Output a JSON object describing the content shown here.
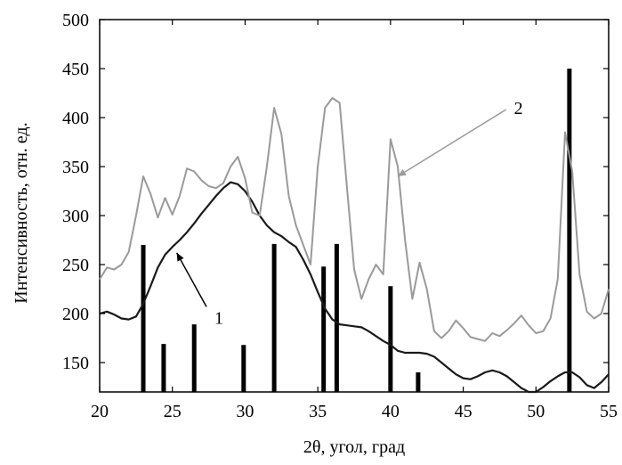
{
  "chart_data": {
    "type": "line",
    "xlabel": "2θ, угол, град",
    "ylabel": "Интенсивность, отн. ед.",
    "xlim": [
      20,
      55
    ],
    "ylim": [
      120,
      500
    ],
    "xticks": [
      20,
      25,
      30,
      35,
      40,
      45,
      50,
      55
    ],
    "yticks": [
      150,
      200,
      250,
      300,
      350,
      400,
      450,
      500
    ],
    "grid": false,
    "series": [
      {
        "name": "1",
        "color": "#1a1a1a",
        "x": [
          20,
          20.5,
          21,
          21.5,
          22,
          22.5,
          23,
          23.5,
          24,
          24.5,
          25,
          25.5,
          26,
          26.5,
          27,
          27.5,
          28,
          28.5,
          29,
          29.5,
          30,
          30.5,
          31,
          31.5,
          32,
          32.5,
          33,
          33.5,
          34,
          34.5,
          35,
          35.5,
          36,
          36.5,
          37,
          37.5,
          38,
          38.5,
          39,
          39.5,
          40,
          40.5,
          41,
          41.5,
          42,
          42.5,
          43,
          43.5,
          44,
          44.5,
          45,
          45.5,
          46,
          46.5,
          47,
          47.5,
          48,
          48.5,
          49,
          49.5,
          50,
          50.5,
          51,
          51.5,
          52,
          52.5,
          53,
          53.5,
          54,
          54.5,
          55
        ],
        "y": [
          200,
          202,
          199,
          195,
          194,
          197,
          210,
          228,
          247,
          260,
          268,
          275,
          283,
          292,
          302,
          311,
          320,
          328,
          334,
          332,
          325,
          314,
          300,
          290,
          283,
          279,
          273,
          268,
          255,
          240,
          222,
          205,
          194,
          189,
          188,
          187,
          186,
          182,
          177,
          172,
          168,
          162,
          160,
          160,
          160,
          159,
          156,
          150,
          144,
          138,
          134,
          133,
          136,
          140,
          142,
          140,
          136,
          130,
          124,
          120,
          120,
          125,
          131,
          136,
          140,
          140,
          135,
          127,
          124,
          130,
          138
        ]
      },
      {
        "name": "2",
        "color": "#9a9a9a",
        "x": [
          20,
          20.5,
          21,
          21.5,
          22,
          22.5,
          23,
          23.5,
          24,
          24.5,
          25,
          25.5,
          26,
          26.5,
          27,
          27.5,
          28,
          28.5,
          29,
          29.5,
          30,
          30.5,
          31,
          31.5,
          32,
          32.5,
          33,
          33.5,
          34,
          34.5,
          35,
          35.5,
          36,
          36.5,
          37,
          37.5,
          38,
          38.5,
          39,
          39.5,
          40,
          40.5,
          41,
          41.5,
          42,
          42.5,
          43,
          43.5,
          44,
          44.5,
          45,
          45.5,
          46,
          46.5,
          47,
          47.5,
          48,
          48.5,
          49,
          49.5,
          50,
          50.5,
          51,
          51.5,
          52,
          52.5,
          53,
          53.5,
          54,
          54.5,
          55
        ],
        "y": [
          235,
          247,
          245,
          250,
          263,
          300,
          340,
          322,
          298,
          318,
          301,
          320,
          348,
          345,
          336,
          330,
          328,
          333,
          350,
          360,
          338,
          303,
          300,
          350,
          410,
          383,
          320,
          290,
          270,
          250,
          350,
          410,
          420,
          415,
          330,
          245,
          215,
          235,
          250,
          240,
          378,
          350,
          275,
          215,
          252,
          225,
          182,
          175,
          182,
          193,
          185,
          176,
          174,
          172,
          180,
          177,
          183,
          190,
          198,
          188,
          180,
          182,
          195,
          235,
          385,
          345,
          240,
          202,
          195,
          200,
          225
        ]
      }
    ],
    "reference_peaks": {
      "color": "#000000",
      "x": [
        23.0,
        24.4,
        26.5,
        29.9,
        32.0,
        35.4,
        36.3,
        40.0,
        41.9,
        52.3
      ],
      "y": [
        270,
        169,
        189,
        168,
        271,
        248,
        271,
        228,
        140,
        450
      ]
    },
    "annotations": [
      {
        "label": "1",
        "target_x": 25.3,
        "target_y": 262,
        "label_x": 28.2,
        "label_y": 196
      },
      {
        "label": "2",
        "target_x": 40.5,
        "target_y": 340,
        "label_x": 48.8,
        "label_y": 410
      }
    ]
  }
}
